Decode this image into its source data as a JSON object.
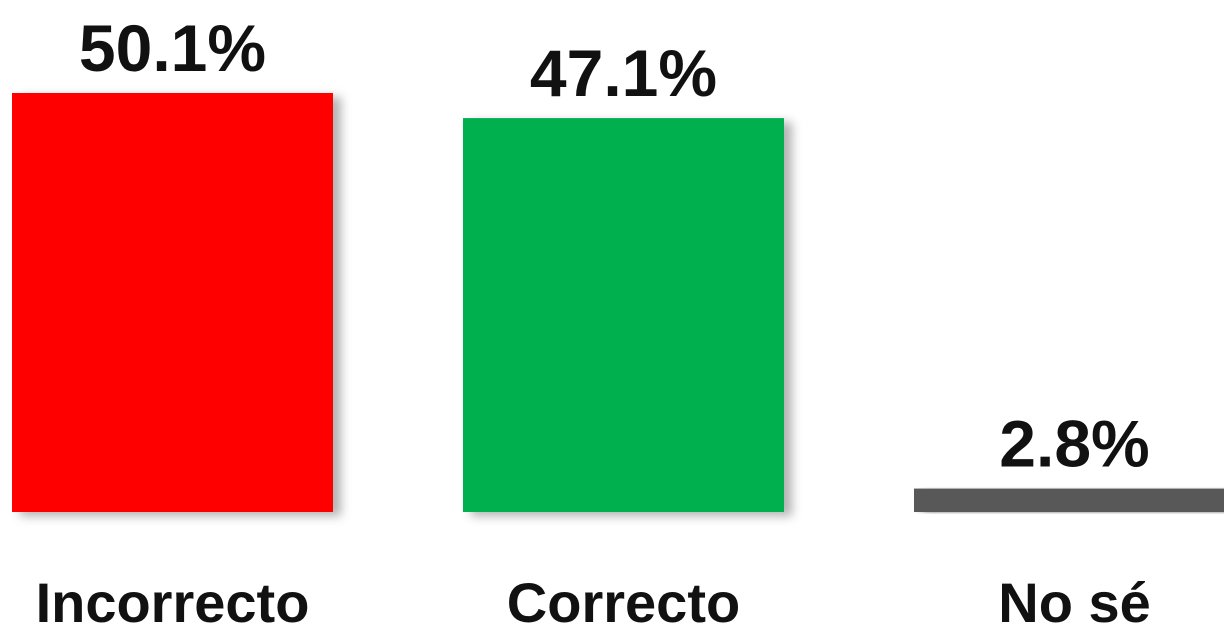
{
  "chart_data": {
    "type": "bar",
    "categories": [
      "Incorrecto",
      "Correcto",
      "No sé"
    ],
    "values": [
      50.1,
      47.1,
      2.8
    ],
    "value_labels": [
      "50.1%",
      "47.1%",
      "2.8%"
    ],
    "colors": [
      "#ff0000",
      "#00b050",
      "#595959"
    ]
  }
}
